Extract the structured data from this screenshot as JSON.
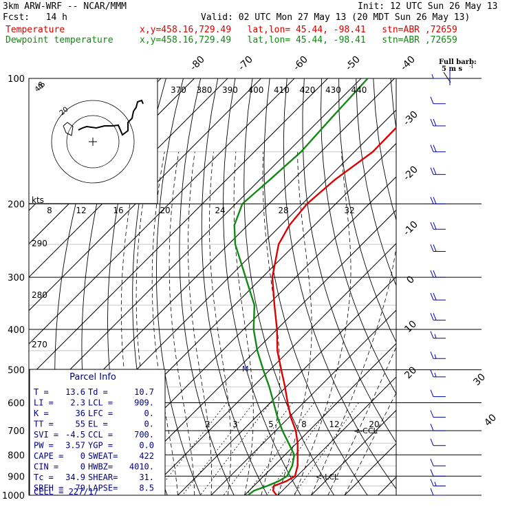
{
  "header": {
    "model": "3km ARW-WRF -- NCAR/MMM",
    "init": "Init: 12 UTC Sun 26 May 13",
    "fcst": "Fcst:   14 h",
    "valid": "Valid: 02 UTC Mon 27 May 13 (20 MDT Sun 26 May 13)",
    "temp_label": "Temperature",
    "temp_loc": "x,y=458.16,729.49   lat,lon= 45.44, -98.41   stn=ABR ,72659",
    "dew_label": "Dewpoint temperature",
    "dew_loc": "x,y=458.16,729.49   lat,lon= 45.44, -98.41   stn=ABR ,72659",
    "barb_label_1": "Full barb:",
    "barb_label_2": "5 m s",
    "barb_label_exp": "-1"
  },
  "colors": {
    "temperature": "#dd0000",
    "dewpoint": "#118811",
    "text_blue": "#000080",
    "barb": "#0000aa",
    "hodograph": "#000000"
  },
  "chart_data": {
    "type": "skew-t",
    "pressure_axis_hPa": [
      100,
      200,
      300,
      400,
      500,
      600,
      700,
      800,
      900,
      1000
    ],
    "isotherm_labels_C": [
      -80,
      -70,
      -60,
      -50,
      -40,
      -30,
      -20,
      -10,
      0,
      10,
      20,
      30,
      40
    ],
    "theta_labels_K": [
      370,
      380,
      390,
      400,
      410,
      420,
      430,
      440
    ],
    "theta_left_labels_K": [
      290,
      280,
      270
    ],
    "mixing_ratio_labels_gkg": [
      "2",
      "3",
      "5",
      "8",
      "12",
      "20"
    ],
    "mixing_ratio_top_labels_gkg": [
      "8",
      "12",
      "16",
      "20",
      "24",
      "28",
      "32"
    ],
    "kts_label": "kts",
    "markers": {
      "lcl": "<-LCL",
      "ccl": "<-CCL",
      "m": "M"
    },
    "temperature_profile": [
      {
        "p": 1000,
        "t": 19.6
      },
      {
        "p": 975,
        "t": 17.2
      },
      {
        "p": 950,
        "t": 16.0
      },
      {
        "p": 925,
        "t": 18.3
      },
      {
        "p": 900,
        "t": 19.4
      },
      {
        "p": 850,
        "t": 17.1
      },
      {
        "p": 800,
        "t": 13.8
      },
      {
        "p": 750,
        "t": 10.3
      },
      {
        "p": 700,
        "t": 6.0
      },
      {
        "p": 650,
        "t": 0.5
      },
      {
        "p": 600,
        "t": -4.8
      },
      {
        "p": 550,
        "t": -10.3
      },
      {
        "p": 500,
        "t": -16.6
      },
      {
        "p": 450,
        "t": -23.5
      },
      {
        "p": 400,
        "t": -30.0
      },
      {
        "p": 350,
        "t": -38.0
      },
      {
        "p": 300,
        "t": -47.0
      },
      {
        "p": 250,
        "t": -55.0
      },
      {
        "p": 225,
        "t": -57.5
      },
      {
        "p": 200,
        "t": -58.6
      },
      {
        "p": 175,
        "t": -57.5
      },
      {
        "p": 150,
        "t": -54.5
      },
      {
        "p": 125,
        "t": -54.8
      },
      {
        "p": 110,
        "t": -55.2
      },
      {
        "p": 100,
        "t": -56.5
      }
    ],
    "dewpoint_profile": [
      {
        "p": 1000,
        "t": 11.0
      },
      {
        "p": 975,
        "t": 11.5
      },
      {
        "p": 950,
        "t": 14.0
      },
      {
        "p": 925,
        "t": 16.0
      },
      {
        "p": 900,
        "t": 17.0
      },
      {
        "p": 850,
        "t": 15.5
      },
      {
        "p": 800,
        "t": 12.8
      },
      {
        "p": 750,
        "t": 7.6
      },
      {
        "p": 700,
        "t": 2.0
      },
      {
        "p": 650,
        "t": -3.5
      },
      {
        "p": 600,
        "t": -9.0
      },
      {
        "p": 550,
        "t": -15.0
      },
      {
        "p": 500,
        "t": -22.0
      },
      {
        "p": 450,
        "t": -29.5
      },
      {
        "p": 400,
        "t": -37.0
      },
      {
        "p": 350,
        "t": -44.0
      },
      {
        "p": 300,
        "t": -55.0
      },
      {
        "p": 250,
        "t": -68.0
      },
      {
        "p": 225,
        "t": -74.0
      },
      {
        "p": 200,
        "t": -78.0
      },
      {
        "p": 175,
        "t": -77.0
      },
      {
        "p": 150,
        "t": -76.0
      },
      {
        "p": 125,
        "t": -77.0
      },
      {
        "p": 100,
        "t": -78.0
      }
    ],
    "wind_profile": [
      {
        "p": 100,
        "spd": 5,
        "dir": 290
      },
      {
        "p": 115,
        "spd": 10,
        "dir": 290
      },
      {
        "p": 130,
        "spd": 20,
        "dir": 290
      },
      {
        "p": 150,
        "spd": 20,
        "dir": 290
      },
      {
        "p": 170,
        "spd": 20,
        "dir": 285
      },
      {
        "p": 200,
        "spd": 20,
        "dir": 285
      },
      {
        "p": 230,
        "spd": 20,
        "dir": 285
      },
      {
        "p": 260,
        "spd": 20,
        "dir": 285
      },
      {
        "p": 300,
        "spd": 20,
        "dir": 285
      },
      {
        "p": 340,
        "spd": 20,
        "dir": 285
      },
      {
        "p": 380,
        "spd": 20,
        "dir": 285
      },
      {
        "p": 420,
        "spd": 15,
        "dir": 285
      },
      {
        "p": 470,
        "spd": 15,
        "dir": 285
      },
      {
        "p": 520,
        "spd": 15,
        "dir": 285
      },
      {
        "p": 580,
        "spd": 10,
        "dir": 285
      },
      {
        "p": 650,
        "spd": 10,
        "dir": 290
      },
      {
        "p": 700,
        "spd": 10,
        "dir": 290
      },
      {
        "p": 760,
        "spd": 10,
        "dir": 300
      },
      {
        "p": 850,
        "spd": 10,
        "dir": 200
      },
      {
        "p": 900,
        "spd": 10,
        "dir": 190
      },
      {
        "p": 950,
        "spd": 15,
        "dir": 190
      },
      {
        "p": 1000,
        "spd": 10,
        "dir": 180
      }
    ],
    "hodograph_rings_kts": [
      "20",
      "40"
    ],
    "hodograph_dir_label": "N"
  },
  "parcel_info": {
    "title": "Parcel Info",
    "rows": [
      [
        "T  =",
        "13.6",
        "Td =",
        "10.7"
      ],
      [
        "LI =",
        "2.3",
        "LCL =",
        "909."
      ],
      [
        "K  =",
        "36",
        "LFC =",
        "0."
      ],
      [
        "TT =",
        "55",
        "EL  =",
        "0."
      ],
      [
        "SVI =",
        "-4.5",
        "CCL =",
        "700."
      ],
      [
        "PW =",
        "3.57",
        "YGP =",
        "0.0"
      ],
      [
        "CAPE =",
        "0",
        "SWEAT=",
        "422"
      ],
      [
        "CIN =",
        "0",
        "HWBZ=",
        "4010."
      ],
      [
        "Tc =",
        "34.9",
        "SHEAR=",
        "31."
      ],
      [
        "SREH =",
        "79",
        "LAPSE=",
        "8.5"
      ]
    ],
    "cell": "CELL = 227/17"
  }
}
